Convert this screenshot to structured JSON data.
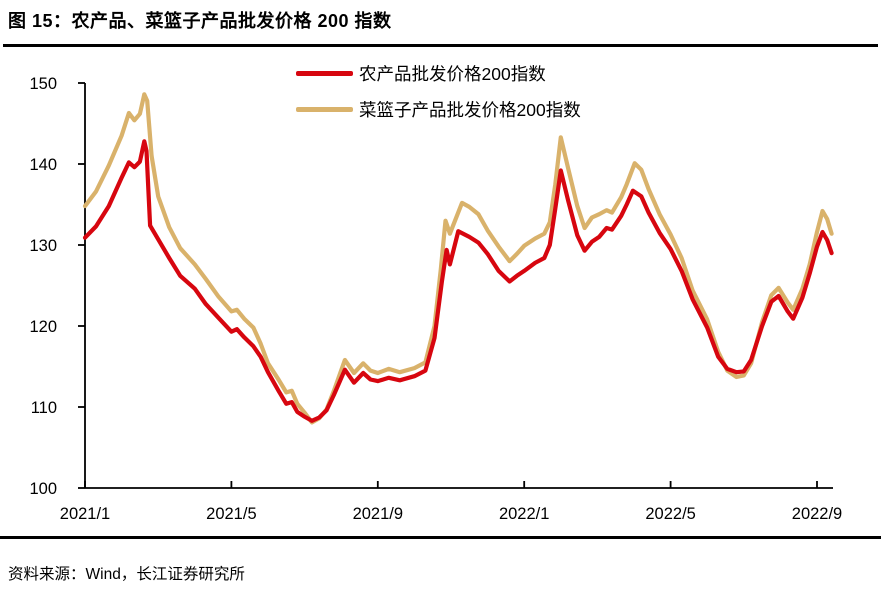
{
  "header": {
    "title": "图 15：农产品、菜篮子产品批发价格 200 指数"
  },
  "footer": {
    "source": "资料来源：Wind，长江证券研究所"
  },
  "colors": {
    "series_agri": "#d7060f",
    "series_basket": "#d9b26b",
    "axis": "#000000",
    "rule": "#000000"
  },
  "chart_data": {
    "type": "line",
    "title": "农产品、菜篮子产品批发价格 200 指数",
    "x_unit": "months since 2021/1 (0 = 2021/1, 20 = 2022/9)",
    "x_ticks": [
      {
        "t": 0,
        "label": "2021/1"
      },
      {
        "t": 4,
        "label": "2021/5"
      },
      {
        "t": 8,
        "label": "2021/9"
      },
      {
        "t": 12,
        "label": "2022/1"
      },
      {
        "t": 16,
        "label": "2022/5"
      },
      {
        "t": 20,
        "label": "2022/9"
      }
    ],
    "ylim": [
      100,
      150
    ],
    "y_ticks": [
      100,
      110,
      120,
      130,
      140,
      150
    ],
    "grid": false,
    "legend_position": "top-center",
    "series": [
      {
        "name": "农产品批发价格200指数",
        "color": "#d7060f",
        "points": [
          [
            0,
            130.9
          ],
          [
            0.3,
            132.3
          ],
          [
            0.65,
            134.8
          ],
          [
            1,
            138.3
          ],
          [
            1.2,
            140.2
          ],
          [
            1.35,
            139.6
          ],
          [
            1.5,
            140.3
          ],
          [
            1.62,
            142.8
          ],
          [
            1.68,
            141.6
          ],
          [
            1.78,
            132.4
          ],
          [
            2,
            130.7
          ],
          [
            2.3,
            128.4
          ],
          [
            2.6,
            126.2
          ],
          [
            3,
            124.6
          ],
          [
            3.3,
            122.7
          ],
          [
            3.65,
            121
          ],
          [
            4,
            119.3
          ],
          [
            4.15,
            119.6
          ],
          [
            4.35,
            118.6
          ],
          [
            4.6,
            117.5
          ],
          [
            4.8,
            116.2
          ],
          [
            5,
            114.3
          ],
          [
            5.3,
            111.9
          ],
          [
            5.5,
            110.4
          ],
          [
            5.65,
            110.6
          ],
          [
            5.8,
            109.4
          ],
          [
            6,
            108.8
          ],
          [
            6.2,
            108.3
          ],
          [
            6.4,
            108.7
          ],
          [
            6.6,
            109.6
          ],
          [
            6.8,
            111.5
          ],
          [
            7.1,
            114.6
          ],
          [
            7.35,
            113
          ],
          [
            7.6,
            114.2
          ],
          [
            7.8,
            113.4
          ],
          [
            8,
            113.2
          ],
          [
            8.3,
            113.6
          ],
          [
            8.6,
            113.3
          ],
          [
            9,
            113.8
          ],
          [
            9.3,
            114.5
          ],
          [
            9.55,
            118.5
          ],
          [
            9.75,
            125.5
          ],
          [
            9.88,
            129.4
          ],
          [
            9.97,
            127.6
          ],
          [
            10.2,
            131.7
          ],
          [
            10.5,
            131
          ],
          [
            10.75,
            130.3
          ],
          [
            11,
            128.9
          ],
          [
            11.3,
            126.8
          ],
          [
            11.6,
            125.5
          ],
          [
            11.8,
            126.2
          ],
          [
            12,
            126.8
          ],
          [
            12.3,
            127.8
          ],
          [
            12.55,
            128.4
          ],
          [
            12.7,
            130
          ],
          [
            12.85,
            134.5
          ],
          [
            13,
            139.2
          ],
          [
            13.2,
            135.5
          ],
          [
            13.45,
            131.2
          ],
          [
            13.65,
            129.3
          ],
          [
            13.85,
            130.4
          ],
          [
            14.05,
            131
          ],
          [
            14.25,
            132.1
          ],
          [
            14.4,
            131.9
          ],
          [
            14.65,
            133.6
          ],
          [
            14.8,
            135
          ],
          [
            14.97,
            136.7
          ],
          [
            15.2,
            136
          ],
          [
            15.4,
            134
          ],
          [
            15.7,
            131.5
          ],
          [
            16,
            129.5
          ],
          [
            16.3,
            126.8
          ],
          [
            16.6,
            123.3
          ],
          [
            17,
            119.8
          ],
          [
            17.3,
            116.2
          ],
          [
            17.55,
            114.7
          ],
          [
            17.8,
            114.3
          ],
          [
            18,
            114.4
          ],
          [
            18.2,
            115.8
          ],
          [
            18.5,
            120
          ],
          [
            18.75,
            123
          ],
          [
            18.95,
            123.7
          ],
          [
            19.2,
            121.8
          ],
          [
            19.35,
            120.9
          ],
          [
            19.6,
            123.5
          ],
          [
            19.8,
            126.5
          ],
          [
            20,
            129.8
          ],
          [
            20.15,
            131.6
          ],
          [
            20.28,
            130.6
          ],
          [
            20.4,
            129
          ]
        ]
      },
      {
        "name": "菜篮子产品批发价格200指数",
        "color": "#d9b26b",
        "points": [
          [
            0,
            134.8
          ],
          [
            0.3,
            136.6
          ],
          [
            0.65,
            139.8
          ],
          [
            1,
            143.5
          ],
          [
            1.2,
            146.3
          ],
          [
            1.35,
            145.4
          ],
          [
            1.5,
            146.2
          ],
          [
            1.62,
            148.6
          ],
          [
            1.7,
            147.8
          ],
          [
            1.82,
            141
          ],
          [
            2,
            136
          ],
          [
            2.3,
            132.2
          ],
          [
            2.6,
            129.6
          ],
          [
            3,
            127.6
          ],
          [
            3.3,
            125.8
          ],
          [
            3.65,
            123.6
          ],
          [
            4,
            121.8
          ],
          [
            4.15,
            122
          ],
          [
            4.35,
            120.9
          ],
          [
            4.6,
            119.8
          ],
          [
            4.8,
            117.8
          ],
          [
            5,
            115.4
          ],
          [
            5.3,
            113.3
          ],
          [
            5.5,
            111.8
          ],
          [
            5.65,
            112
          ],
          [
            5.8,
            110.4
          ],
          [
            6,
            109.3
          ],
          [
            6.2,
            108.1
          ],
          [
            6.4,
            108.6
          ],
          [
            6.6,
            109.7
          ],
          [
            6.8,
            112
          ],
          [
            7.1,
            115.8
          ],
          [
            7.35,
            114.2
          ],
          [
            7.6,
            115.4
          ],
          [
            7.8,
            114.5
          ],
          [
            8,
            114.2
          ],
          [
            8.3,
            114.7
          ],
          [
            8.6,
            114.3
          ],
          [
            9,
            114.8
          ],
          [
            9.3,
            115.5
          ],
          [
            9.55,
            120
          ],
          [
            9.72,
            127
          ],
          [
            9.85,
            133
          ],
          [
            9.97,
            131.4
          ],
          [
            10.3,
            135.2
          ],
          [
            10.5,
            134.7
          ],
          [
            10.75,
            133.8
          ],
          [
            11,
            131.8
          ],
          [
            11.3,
            129.8
          ],
          [
            11.6,
            128
          ],
          [
            11.8,
            128.9
          ],
          [
            12,
            129.9
          ],
          [
            12.3,
            130.8
          ],
          [
            12.55,
            131.4
          ],
          [
            12.7,
            132.8
          ],
          [
            12.85,
            137.5
          ],
          [
            13,
            143.3
          ],
          [
            13.2,
            139.5
          ],
          [
            13.45,
            134.8
          ],
          [
            13.65,
            132.1
          ],
          [
            13.85,
            133.4
          ],
          [
            14.05,
            133.8
          ],
          [
            14.25,
            134.3
          ],
          [
            14.4,
            134
          ],
          [
            14.65,
            135.9
          ],
          [
            14.8,
            137.5
          ],
          [
            15.02,
            140.1
          ],
          [
            15.2,
            139.3
          ],
          [
            15.4,
            136.9
          ],
          [
            15.7,
            133.8
          ],
          [
            16,
            131.3
          ],
          [
            16.3,
            128.4
          ],
          [
            16.6,
            124.4
          ],
          [
            17,
            120.8
          ],
          [
            17.3,
            116.8
          ],
          [
            17.55,
            114.5
          ],
          [
            17.8,
            113.7
          ],
          [
            18,
            113.9
          ],
          [
            18.2,
            115.4
          ],
          [
            18.5,
            120.5
          ],
          [
            18.75,
            123.8
          ],
          [
            18.95,
            124.7
          ],
          [
            19.2,
            122.9
          ],
          [
            19.35,
            122
          ],
          [
            19.6,
            124.6
          ],
          [
            19.8,
            127.6
          ],
          [
            20,
            131.6
          ],
          [
            20.15,
            134.2
          ],
          [
            20.28,
            133.2
          ],
          [
            20.4,
            131.4
          ]
        ]
      }
    ]
  }
}
